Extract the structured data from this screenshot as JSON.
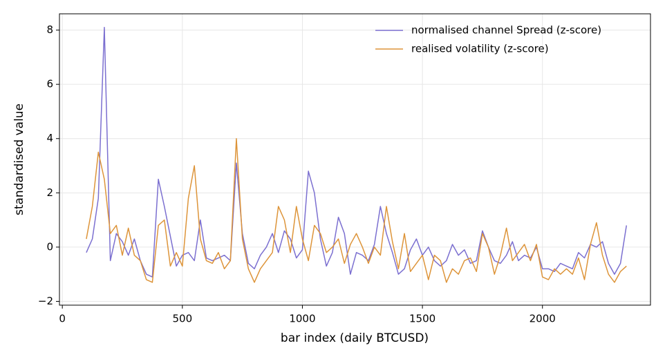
{
  "chart_data": {
    "type": "line",
    "xlabel": "bar index (daily BTCUSD)",
    "ylabel": "standardised value",
    "x": [
      100,
      125,
      150,
      175,
      200,
      225,
      250,
      275,
      300,
      325,
      350,
      375,
      400,
      425,
      450,
      475,
      500,
      525,
      550,
      575,
      600,
      625,
      650,
      675,
      700,
      725,
      750,
      775,
      800,
      825,
      850,
      875,
      900,
      925,
      950,
      975,
      1000,
      1025,
      1050,
      1075,
      1100,
      1125,
      1150,
      1175,
      1200,
      1225,
      1250,
      1275,
      1300,
      1325,
      1350,
      1375,
      1400,
      1425,
      1450,
      1475,
      1500,
      1525,
      1550,
      1575,
      1600,
      1625,
      1650,
      1675,
      1700,
      1725,
      1750,
      1775,
      1800,
      1825,
      1850,
      1875,
      1900,
      1925,
      1950,
      1975,
      2000,
      2025,
      2050,
      2075,
      2100,
      2125,
      2150,
      2175,
      2200,
      2225,
      2250,
      2275,
      2300,
      2325,
      2350
    ],
    "series": [
      {
        "name": "normalised channel Spread (z-score)",
        "color": "#7b6fd0",
        "values": [
          -0.2,
          0.3,
          1.8,
          8.1,
          -0.5,
          0.5,
          0.2,
          -0.3,
          0.3,
          -0.5,
          -1.0,
          -1.1,
          2.5,
          1.5,
          0.4,
          -0.7,
          -0.3,
          -0.2,
          -0.5,
          1.0,
          -0.4,
          -0.5,
          -0.4,
          -0.3,
          -0.5,
          3.1,
          0.5,
          -0.6,
          -0.8,
          -0.3,
          0.0,
          0.5,
          -0.2,
          0.6,
          0.3,
          -0.4,
          -0.1,
          2.8,
          2.0,
          0.3,
          -0.7,
          -0.2,
          1.1,
          0.5,
          -1.0,
          -0.2,
          -0.3,
          -0.5,
          0.1,
          1.5,
          0.5,
          -0.2,
          -1.0,
          -0.8,
          -0.1,
          0.3,
          -0.3,
          0.0,
          -0.5,
          -0.7,
          -0.5,
          0.1,
          -0.3,
          -0.1,
          -0.6,
          -0.5,
          0.6,
          0.0,
          -0.5,
          -0.6,
          -0.3,
          0.2,
          -0.5,
          -0.3,
          -0.4,
          0.0,
          -0.8,
          -0.8,
          -0.9,
          -0.6,
          -0.7,
          -0.8,
          -0.2,
          -0.4,
          0.1,
          0.0,
          0.2,
          -0.6,
          -1.0,
          -0.6,
          0.8
        ]
      },
      {
        "name": "realised volatility (z-score)",
        "color": "#dd9439",
        "values": [
          0.3,
          1.5,
          3.5,
          2.5,
          0.5,
          0.8,
          -0.3,
          0.7,
          -0.3,
          -0.5,
          -1.2,
          -1.3,
          0.8,
          1.0,
          -0.7,
          -0.2,
          -0.7,
          1.8,
          3.0,
          0.3,
          -0.5,
          -0.6,
          -0.2,
          -0.8,
          -0.5,
          4.0,
          0.3,
          -0.8,
          -1.3,
          -0.8,
          -0.5,
          -0.2,
          1.5,
          1.0,
          -0.2,
          1.5,
          0.3,
          -0.5,
          0.8,
          0.5,
          -0.2,
          0.0,
          0.3,
          -0.6,
          0.1,
          0.5,
          0.0,
          -0.6,
          0.0,
          -0.3,
          1.5,
          0.2,
          -0.8,
          0.5,
          -0.9,
          -0.6,
          -0.3,
          -1.2,
          -0.3,
          -0.5,
          -1.3,
          -0.8,
          -1.0,
          -0.5,
          -0.4,
          -0.9,
          0.5,
          0.0,
          -1.0,
          -0.3,
          0.7,
          -0.5,
          -0.2,
          0.1,
          -0.5,
          0.1,
          -1.1,
          -1.2,
          -0.8,
          -1.0,
          -0.8,
          -1.0,
          -0.4,
          -1.2,
          0.1,
          0.9,
          -0.3,
          -1.0,
          -1.3,
          -0.9,
          -0.7
        ]
      }
    ],
    "xlim": [
      -12,
      2450
    ],
    "ylim": [
      -2.14,
      8.6
    ],
    "xticks": [
      0,
      500,
      1000,
      1500,
      2000
    ],
    "yticks": [
      {
        "value": -2,
        "label": "−2"
      },
      0,
      2,
      4,
      6,
      8
    ],
    "grid": true,
    "legend": "upper right"
  }
}
